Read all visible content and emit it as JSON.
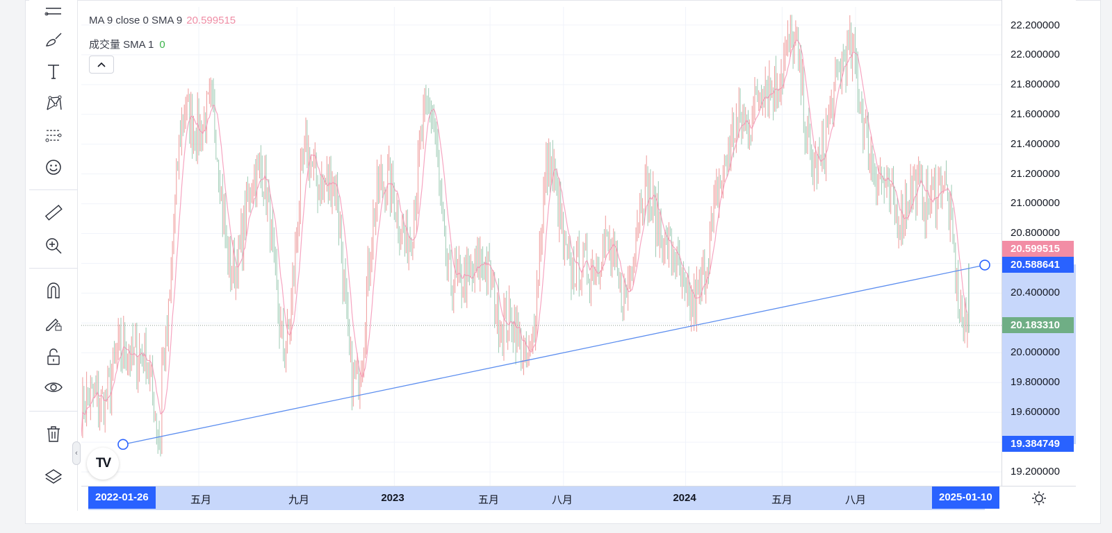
{
  "legend": {
    "ma_label": "MA 9 close 0 SMA 9",
    "ma_value": "20.599515",
    "volume_label": "成交量 SMA 1",
    "volume_value": "0"
  },
  "toolbar": {
    "tools": [
      "lines-icon",
      "brush-icon",
      "text-icon",
      "pattern-icon",
      "forecast-icon",
      "emoji-icon",
      "ruler-icon",
      "zoom-in-icon",
      "magnet-icon",
      "lock-drawing-icon",
      "unlock-icon",
      "eye-icon",
      "trash-icon",
      "layers-icon"
    ],
    "collapse_glyph": "‹"
  },
  "price_axis": {
    "ticks": [
      "22.200000",
      "22.000000",
      "21.800000",
      "21.600000",
      "21.400000",
      "21.200000",
      "21.000000",
      "20.800000",
      "20.400000",
      "20.000000",
      "19.800000",
      "19.600000",
      "19.200000"
    ],
    "badges": {
      "ma": "20.599515",
      "trend_end": "20.588641",
      "current": "20.183310",
      "trend_start": "19.384749"
    }
  },
  "time_axis": {
    "ticks": [
      "五月",
      "九月",
      "2023",
      "五月",
      "八月",
      "2024",
      "五月",
      "八月"
    ],
    "start_badge": "2022-01-26",
    "end_badge": "2025-01-10"
  },
  "logo_text": "TV",
  "colors": {
    "up": "#ef9a9a",
    "down": "#9ccab3",
    "ma_line": "#f48fb1",
    "trend_line": "#5b8def",
    "accent": "#2962ff",
    "ma_badge": "#f28da5",
    "current_badge": "#6fae85"
  },
  "chart_data": {
    "type": "candlestick",
    "x_range": [
      "2022-01-26",
      "2025-01-10"
    ],
    "ylim": [
      19.2,
      22.2
    ],
    "close_path": [
      [
        "2022-01",
        19.6
      ],
      [
        "2022-02",
        20.05
      ],
      [
        "2022-03",
        19.45
      ],
      [
        "2022-03",
        20.0
      ],
      [
        "2022-04",
        21.6
      ],
      [
        "2022-05",
        21.55
      ],
      [
        "2022-06",
        20.55
      ],
      [
        "2022-07",
        21.3
      ],
      [
        "2022-08",
        20.1
      ],
      [
        "2022-09",
        21.3
      ],
      [
        "2022-10",
        21.1
      ],
      [
        "2022-11",
        19.8
      ],
      [
        "2022-12",
        21.2
      ],
      [
        "2023-01",
        20.8
      ],
      [
        "2023-02",
        21.6
      ],
      [
        "2023-03",
        20.4
      ],
      [
        "2023-04",
        20.6
      ],
      [
        "2023-05",
        20.3
      ],
      [
        "2023-06",
        19.95
      ],
      [
        "2023-07",
        21.2
      ],
      [
        "2023-08",
        20.5
      ],
      [
        "2023-09",
        20.7
      ],
      [
        "2023-10",
        20.45
      ],
      [
        "2023-11",
        21.1
      ],
      [
        "2023-12",
        20.6
      ],
      [
        "2024-01",
        20.3
      ],
      [
        "2024-02",
        21.2
      ],
      [
        "2024-03",
        21.6
      ],
      [
        "2024-05",
        22.0
      ],
      [
        "2024-06",
        21.2
      ],
      [
        "2024-07",
        22.0
      ],
      [
        "2024-09",
        21.0
      ],
      [
        "2024-11",
        21.1
      ],
      [
        "2025-01",
        20.18
      ]
    ],
    "trend_line": {
      "start": [
        "2022-01-26",
        19.384749
      ],
      "end": [
        "2025-01-10",
        20.588641
      ]
    },
    "current_price": 20.18331,
    "ma_value": 20.599515
  }
}
